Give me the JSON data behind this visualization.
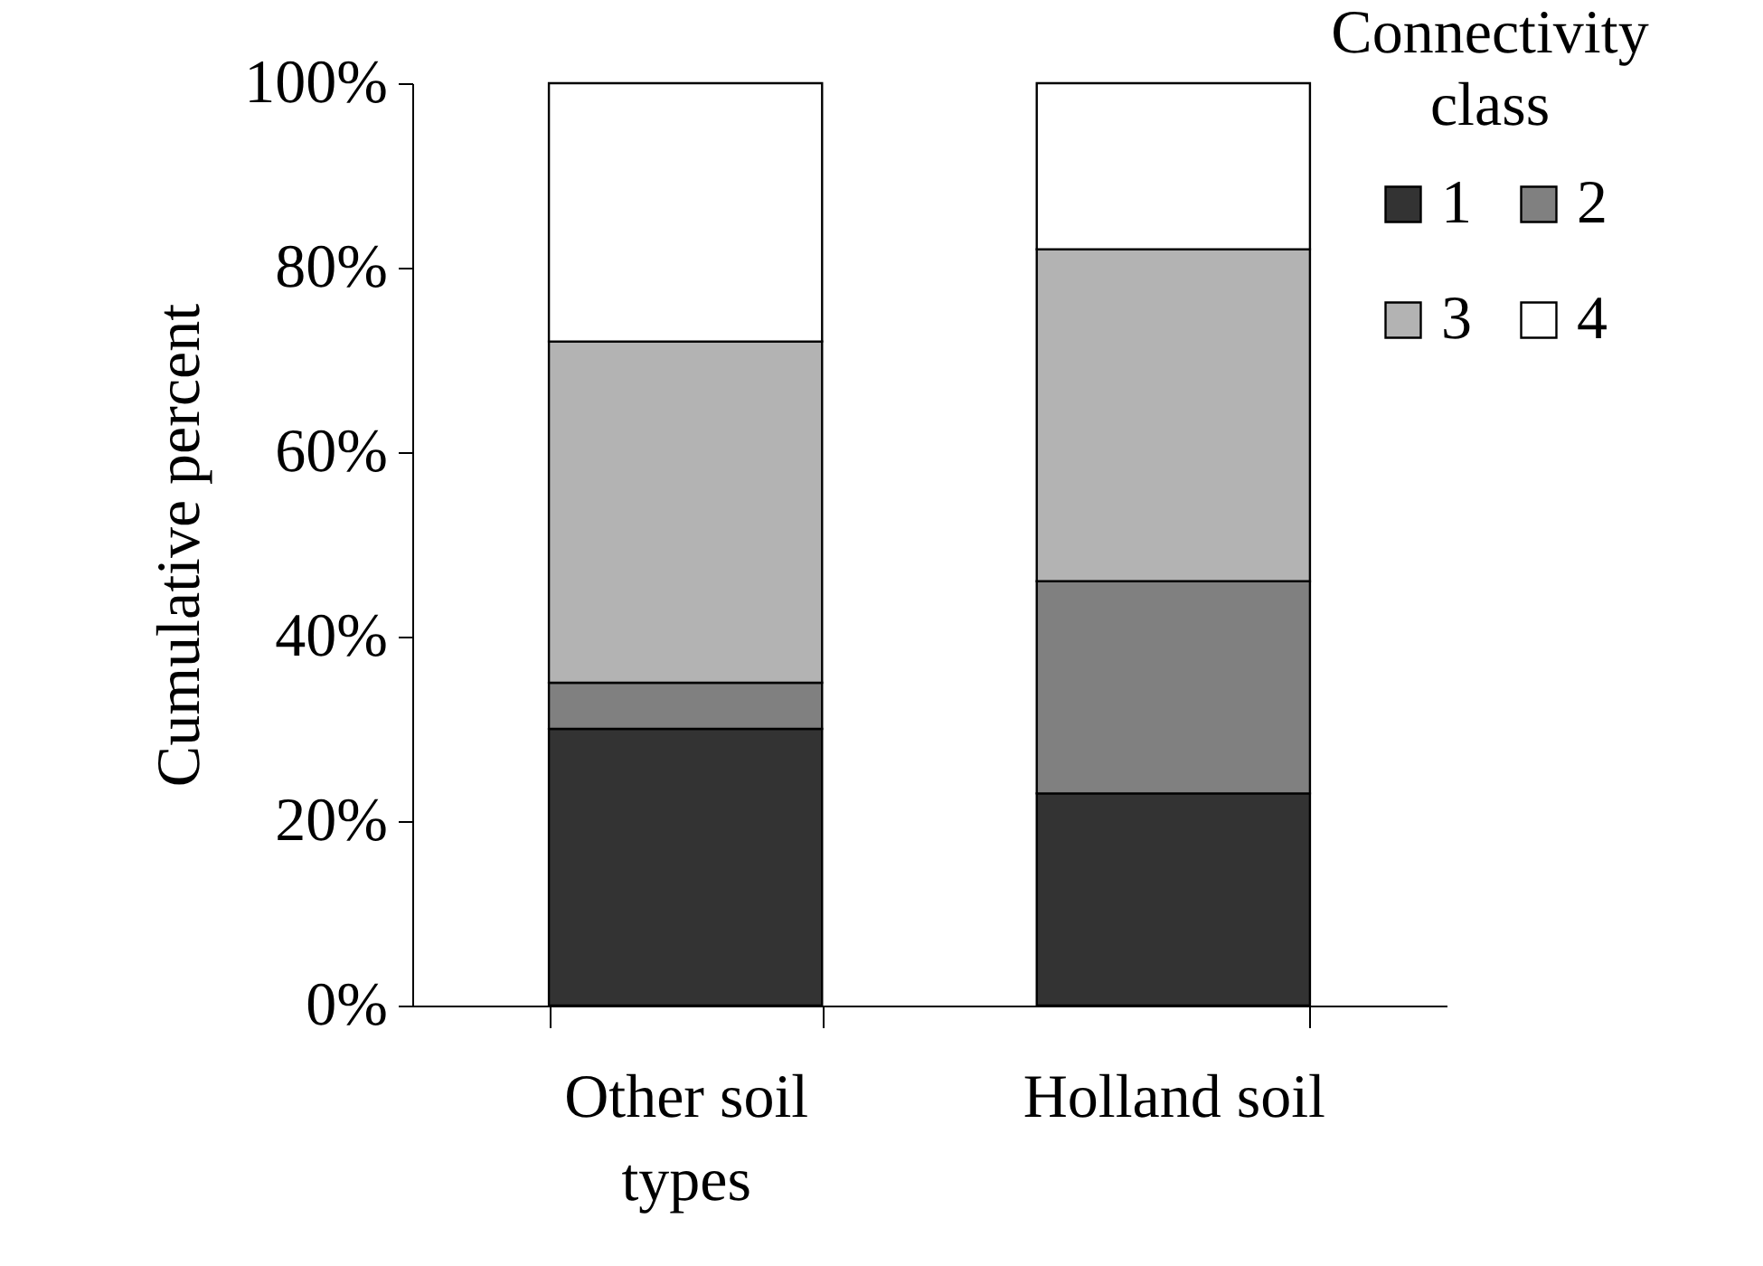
{
  "chart_data": {
    "type": "bar",
    "stacked": true,
    "ylabel": "Cumulative percent",
    "legend_title": "Connectivity class",
    "legend": "top right",
    "grid": false,
    "categories": [
      "Other soil types",
      "Holland soil"
    ],
    "series": [
      {
        "name": "1",
        "color": "#333333",
        "values": [
          30,
          23
        ]
      },
      {
        "name": "2",
        "color": "#808080",
        "values": [
          5,
          23
        ]
      },
      {
        "name": "3",
        "color": "#b3b3b3",
        "values": [
          37,
          36
        ]
      },
      {
        "name": "4",
        "color": "#ffffff",
        "values": [
          28,
          18
        ]
      }
    ],
    "ylim": [
      0,
      100
    ],
    "yticks": [
      {
        "value": 0,
        "label": "0%"
      },
      {
        "value": 20,
        "label": "20%"
      },
      {
        "value": 40,
        "label": "40%"
      },
      {
        "value": 60,
        "label": "60%"
      },
      {
        "value": 80,
        "label": "80%"
      },
      {
        "value": 100,
        "label": "100%"
      }
    ]
  }
}
